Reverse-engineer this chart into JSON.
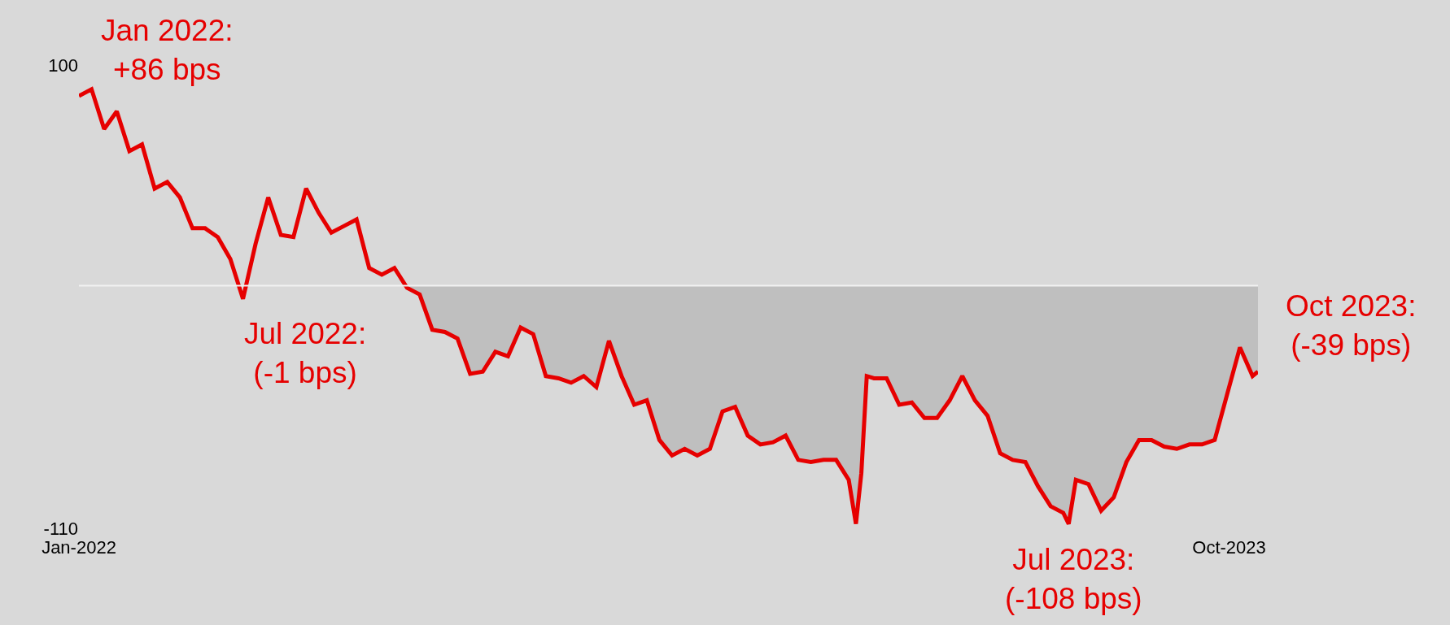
{
  "chart_data": {
    "type": "line",
    "x": [
      "2022-01-01",
      "2022-01-08",
      "2022-01-15",
      "2022-01-22",
      "2022-01-29",
      "2022-02-05",
      "2022-02-12",
      "2022-02-19",
      "2022-02-26",
      "2022-03-05",
      "2022-03-12",
      "2022-03-19",
      "2022-03-26",
      "2022-04-02",
      "2022-04-09",
      "2022-04-16",
      "2022-04-23",
      "2022-04-30",
      "2022-05-07",
      "2022-05-14",
      "2022-05-21",
      "2022-05-28",
      "2022-06-04",
      "2022-06-11",
      "2022-06-18",
      "2022-06-25",
      "2022-07-02",
      "2022-07-09",
      "2022-07-16",
      "2022-07-23",
      "2022-07-30",
      "2022-08-06",
      "2022-08-13",
      "2022-08-20",
      "2022-08-27",
      "2022-09-03",
      "2022-09-10",
      "2022-09-17",
      "2022-09-24",
      "2022-10-01",
      "2022-10-08",
      "2022-10-15",
      "2022-10-22",
      "2022-10-29",
      "2022-11-05",
      "2022-11-12",
      "2022-11-19",
      "2022-11-26",
      "2022-12-03",
      "2022-12-10",
      "2022-12-17",
      "2022-12-24",
      "2022-12-31",
      "2023-01-07",
      "2023-01-14",
      "2023-01-21",
      "2023-01-28",
      "2023-02-04",
      "2023-02-11",
      "2023-02-18",
      "2023-02-25",
      "2023-03-04",
      "2023-03-08",
      "2023-03-11",
      "2023-03-14",
      "2023-03-18",
      "2023-03-25",
      "2023-04-01",
      "2023-04-08",
      "2023-04-15",
      "2023-04-22",
      "2023-04-29",
      "2023-05-06",
      "2023-05-13",
      "2023-05-20",
      "2023-05-27",
      "2023-06-03",
      "2023-06-10",
      "2023-06-17",
      "2023-06-24",
      "2023-07-01",
      "2023-07-04",
      "2023-07-08",
      "2023-07-15",
      "2023-07-22",
      "2023-07-29",
      "2023-08-05",
      "2023-08-12",
      "2023-08-19",
      "2023-08-26",
      "2023-09-02",
      "2023-09-09",
      "2023-09-16",
      "2023-09-23",
      "2023-09-30",
      "2023-10-07",
      "2023-10-14",
      "2023-10-17"
    ],
    "series": [
      {
        "type": "area",
        "color": "#bfbfbf",
        "values": [
          null,
          null,
          null,
          null,
          null,
          null,
          null,
          null,
          null,
          null,
          null,
          null,
          null,
          null,
          null,
          null,
          null,
          null,
          null,
          null,
          null,
          null,
          null,
          null,
          null,
          null,
          -1,
          -4,
          -20,
          -21,
          -24,
          -40,
          -39,
          -30,
          -32,
          -19,
          -22,
          -41,
          -42,
          -44,
          -41,
          -46,
          -25,
          -41,
          -54,
          -52,
          -70,
          -77,
          -74,
          -77,
          -74,
          -57,
          -55,
          -68,
          -72,
          -71,
          -68,
          -79,
          -80,
          -79,
          -79,
          -88,
          -108,
          -85,
          -41,
          -42,
          -42,
          -54,
          -53,
          -60,
          -60,
          -52,
          -41,
          -52,
          -59,
          -76,
          -79,
          -80,
          -91,
          -100,
          -103,
          -108,
          -88,
          -90,
          -102,
          -96,
          -80,
          -70,
          -70,
          -73,
          -74,
          -72,
          -72,
          -70,
          -49,
          -28,
          -41,
          -39
        ]
      },
      {
        "color": "#e60000",
        "values": [
          86,
          89,
          71,
          79,
          61,
          64,
          44,
          47,
          40,
          26,
          26,
          22,
          12,
          -6,
          19,
          40,
          23,
          22,
          44,
          33,
          24,
          27,
          30,
          8,
          5,
          8,
          -1,
          -4,
          -20,
          -21,
          -24,
          -40,
          -39,
          -30,
          -32,
          -19,
          -22,
          -41,
          -42,
          -44,
          -41,
          -46,
          -25,
          -41,
          -54,
          -52,
          -70,
          -77,
          -74,
          -77,
          -74,
          -57,
          -55,
          -68,
          -72,
          -71,
          -68,
          -79,
          -80,
          -79,
          -79,
          -88,
          -108,
          -85,
          -41,
          -42,
          -42,
          -54,
          -53,
          -60,
          -60,
          -52,
          -41,
          -52,
          -59,
          -76,
          -79,
          -80,
          -91,
          -100,
          -103,
          -108,
          -88,
          -90,
          -102,
          -96,
          -80,
          -70,
          -70,
          -73,
          -74,
          -72,
          -72,
          -70,
          -49,
          -28,
          -41,
          -39
        ]
      }
    ],
    "xlim": [
      "2022-01-01",
      "2023-10-17"
    ],
    "xticks": [
      {
        "value": "2022-01-01",
        "label": "Jan-2022"
      },
      {
        "value": "2023-10-01",
        "label": "Oct-2023"
      }
    ],
    "ylim": [
      -110,
      100
    ],
    "yticks": [
      -110,
      100
    ],
    "ref_lines": [
      {
        "axis": "y",
        "value": 0,
        "color": "#f2f2f2"
      }
    ],
    "annotations": [
      {
        "text": "Jan 2022:\n+86 bps",
        "x": "2022-01-01",
        "y": 86
      },
      {
        "text": "Jul 2022:\n(-1 bps)",
        "x": "2022-07-02",
        "y": -1
      },
      {
        "text": "Jul 2023:\n(-108 bps)",
        "x": "2023-07-04",
        "y": -108
      },
      {
        "text": "Oct 2023:\n(-39 bps)",
        "x": "2023-10-17",
        "y": -39
      }
    ],
    "grid": false,
    "marker": "none",
    "line_style": "solid"
  }
}
